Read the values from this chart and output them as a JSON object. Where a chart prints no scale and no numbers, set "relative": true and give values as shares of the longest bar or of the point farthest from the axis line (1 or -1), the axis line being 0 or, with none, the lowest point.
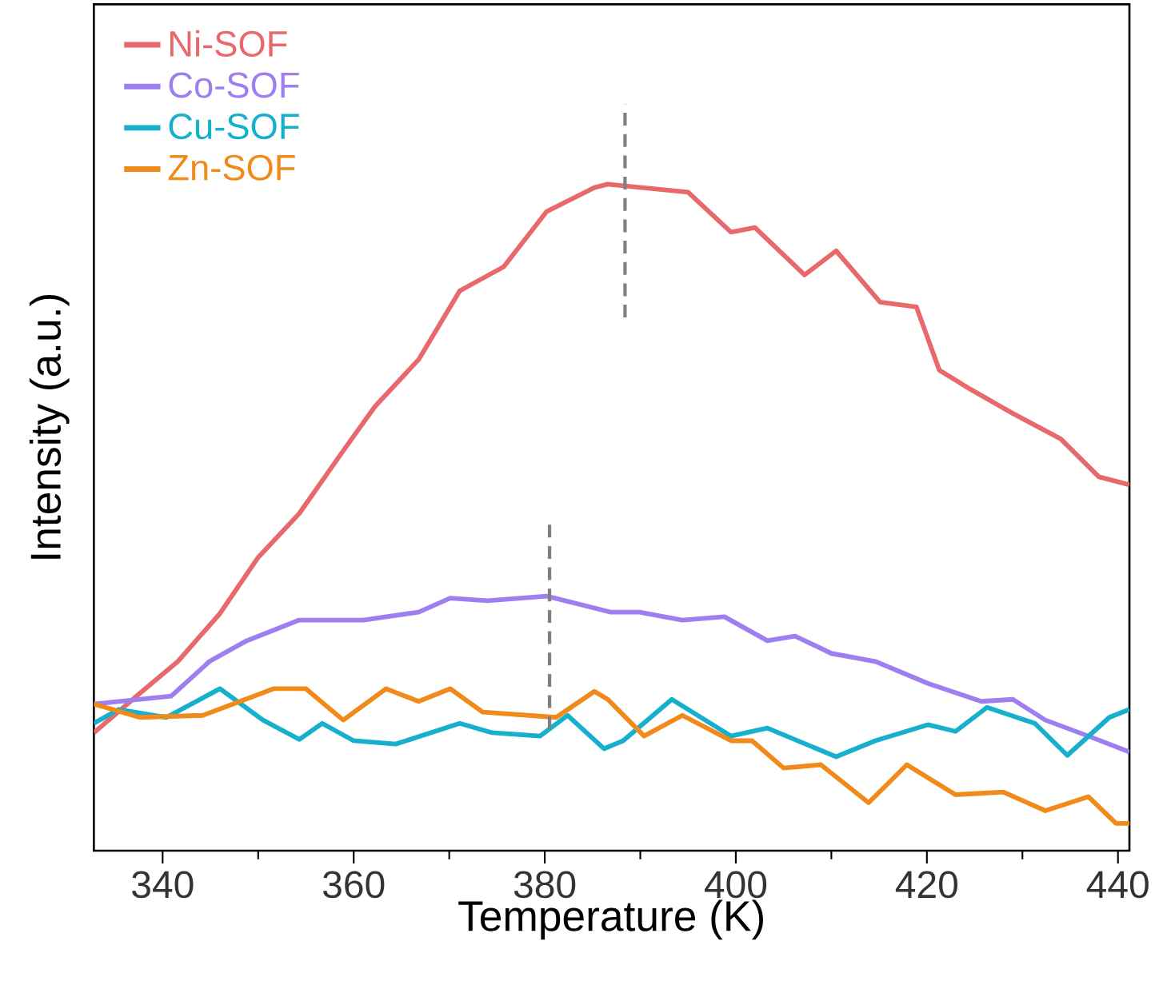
{
  "chart_data": {
    "type": "line",
    "xlabel": "Temperature (K)",
    "ylabel": "Intensity (a.u.)",
    "relative": true,
    "xlim": [
      332.8,
      441.2
    ],
    "xticks": [
      340,
      360,
      380,
      400,
      420,
      440
    ],
    "legend": "top left",
    "tick_labels": "x",
    "series": [
      {
        "name": "Ni-SOF",
        "color": "#e8696b",
        "x": [
          332.8,
          337.6,
          341.6,
          346,
          350,
          354.3,
          358.9,
          362.2,
          366.8,
          371.1,
          375.7,
          380.2,
          385.2,
          386.6,
          395,
          399.5,
          402,
          407.2,
          410.5,
          415.1,
          418.9,
          421.3,
          424.6,
          429,
          434,
          438,
          441.2
        ],
        "values": [
          0.177,
          0.236,
          0.284,
          0.356,
          0.44,
          0.506,
          0.6,
          0.666,
          0.737,
          0.84,
          0.876,
          0.959,
          0.995,
          1.0,
          0.988,
          0.928,
          0.935,
          0.864,
          0.9,
          0.823,
          0.816,
          0.721,
          0.692,
          0.656,
          0.618,
          0.561,
          0.549
        ]
      },
      {
        "name": "Co-SOF",
        "color": "#9e7ff0",
        "x": [
          332.8,
          340.9,
          344.9,
          348.8,
          354.3,
          361,
          366.8,
          370.1,
          374,
          380.2,
          386.9,
          389.9,
          394.4,
          398.8,
          403.3,
          406.2,
          410,
          414.6,
          420.1,
          425.7,
          429,
          432.4,
          436.9,
          441.2
        ],
        "values": [
          0.22,
          0.232,
          0.284,
          0.315,
          0.346,
          0.346,
          0.358,
          0.379,
          0.375,
          0.382,
          0.358,
          0.358,
          0.346,
          0.351,
          0.315,
          0.322,
          0.296,
          0.284,
          0.251,
          0.224,
          0.227,
          0.196,
          0.172,
          0.148
        ]
      },
      {
        "name": "Cu-SOF",
        "color": "#17b0cc",
        "x": [
          332.8,
          335.4,
          340.4,
          346,
          350.5,
          354.3,
          356.7,
          360,
          364.4,
          371.1,
          374.5,
          379.5,
          382.4,
          386.2,
          388.2,
          393.3,
          399.5,
          403.3,
          410.5,
          414.6,
          420.1,
          423,
          426.3,
          431.3,
          434.7,
          439.1,
          441.2
        ],
        "values": [
          0.191,
          0.212,
          0.2,
          0.243,
          0.196,
          0.167,
          0.191,
          0.165,
          0.16,
          0.191,
          0.177,
          0.172,
          0.203,
          0.153,
          0.165,
          0.227,
          0.172,
          0.184,
          0.141,
          0.165,
          0.189,
          0.179,
          0.215,
          0.191,
          0.143,
          0.2,
          0.212
        ]
      },
      {
        "name": "Zn-SOF",
        "color": "#f08a1a",
        "x": [
          332.8,
          337.6,
          344.2,
          351.6,
          355,
          358.9,
          363.4,
          366.8,
          370.1,
          373.5,
          381.2,
          385.2,
          386.6,
          390.4,
          394.4,
          399.5,
          401.7,
          405,
          408.9,
          413.9,
          417.9,
          423,
          428,
          432.4,
          436.9,
          439.8,
          441.2
        ],
        "values": [
          0.22,
          0.2,
          0.203,
          0.243,
          0.243,
          0.196,
          0.243,
          0.224,
          0.243,
          0.208,
          0.2,
          0.239,
          0.227,
          0.172,
          0.203,
          0.165,
          0.165,
          0.124,
          0.129,
          0.072,
          0.129,
          0.084,
          0.088,
          0.06,
          0.081,
          0.041,
          0.041
        ]
      }
    ],
    "ref_lines": [
      {
        "axis": "x",
        "value": 388.4,
        "color": "#808080",
        "line_style": "dashed"
      },
      {
        "axis": "x",
        "value": 380.5,
        "color": "#808080",
        "line_style": "dashed"
      }
    ]
  }
}
